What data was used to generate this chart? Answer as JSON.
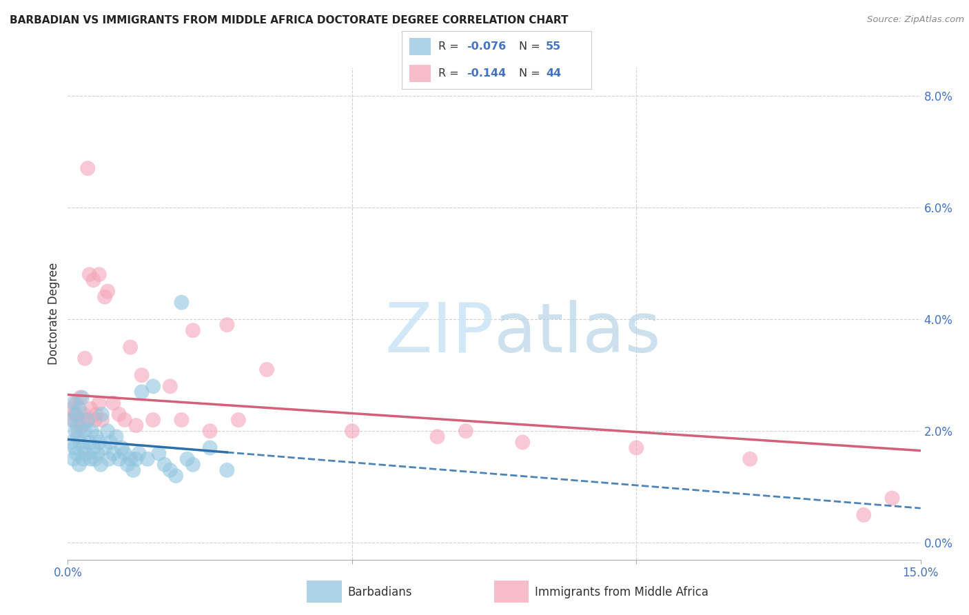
{
  "title": "BARBADIAN VS IMMIGRANTS FROM MIDDLE AFRICA DOCTORATE DEGREE CORRELATION CHART",
  "source": "Source: ZipAtlas.com",
  "ylabel": "Doctorate Degree",
  "ytick_vals": [
    0.0,
    2.0,
    4.0,
    6.0,
    8.0
  ],
  "xlim": [
    0.0,
    15.0
  ],
  "ylim": [
    -0.3,
    8.5
  ],
  "legend_blue_r": "-0.076",
  "legend_blue_n": "55",
  "legend_pink_r": "-0.144",
  "legend_pink_n": "44",
  "blue_color": "#92c5de",
  "pink_color": "#f4a6b8",
  "blue_line_color": "#2c6fad",
  "pink_line_color": "#d4607a",
  "blue_scatter": {
    "x": [
      0.05,
      0.07,
      0.1,
      0.1,
      0.12,
      0.13,
      0.15,
      0.15,
      0.17,
      0.18,
      0.2,
      0.2,
      0.22,
      0.25,
      0.27,
      0.28,
      0.3,
      0.32,
      0.35,
      0.38,
      0.4,
      0.42,
      0.45,
      0.48,
      0.5,
      0.52,
      0.55,
      0.58,
      0.6,
      0.65,
      0.7,
      0.72,
      0.75,
      0.8,
      0.85,
      0.9,
      0.95,
      1.0,
      1.05,
      1.1,
      1.15,
      1.2,
      1.25,
      1.3,
      1.4,
      1.5,
      1.6,
      1.7,
      1.8,
      1.9,
      2.0,
      2.1,
      2.2,
      2.5,
      2.8
    ],
    "y": [
      2.2,
      1.8,
      2.5,
      1.5,
      1.7,
      2.0,
      2.3,
      1.6,
      2.1,
      1.9,
      2.4,
      1.4,
      1.8,
      2.6,
      1.5,
      1.7,
      2.0,
      1.6,
      2.2,
      1.8,
      1.5,
      2.0,
      1.7,
      1.5,
      1.9,
      1.6,
      1.8,
      1.4,
      2.3,
      1.7,
      2.0,
      1.5,
      1.8,
      1.6,
      1.9,
      1.5,
      1.7,
      1.6,
      1.4,
      1.5,
      1.3,
      1.5,
      1.6,
      2.7,
      1.5,
      2.8,
      1.6,
      1.4,
      1.3,
      1.2,
      4.3,
      1.5,
      1.4,
      1.7,
      1.3
    ]
  },
  "pink_scatter": {
    "x": [
      0.08,
      0.1,
      0.12,
      0.15,
      0.18,
      0.2,
      0.22,
      0.25,
      0.28,
      0.3,
      0.35,
      0.38,
      0.4,
      0.45,
      0.48,
      0.5,
      0.55,
      0.6,
      0.65,
      0.7,
      0.8,
      0.9,
      1.0,
      1.1,
      1.2,
      1.3,
      1.5,
      1.8,
      2.0,
      2.5,
      3.0,
      3.5,
      5.0,
      6.5,
      7.0,
      8.0,
      10.0,
      12.0,
      14.0,
      14.5,
      0.35,
      0.55,
      2.2,
      2.8
    ],
    "y": [
      2.4,
      2.2,
      2.3,
      2.5,
      2.0,
      2.2,
      2.6,
      2.1,
      2.3,
      3.3,
      2.2,
      4.8,
      2.4,
      4.7,
      2.2,
      2.3,
      2.5,
      2.2,
      4.4,
      4.5,
      2.5,
      2.3,
      2.2,
      3.5,
      2.1,
      3.0,
      2.2,
      2.8,
      2.2,
      2.0,
      2.2,
      3.1,
      2.0,
      1.9,
      2.0,
      1.8,
      1.7,
      1.5,
      0.5,
      0.8,
      6.7,
      4.8,
      3.8,
      3.9
    ]
  },
  "background_color": "#ffffff",
  "grid_color": "#d0d0d0",
  "title_fontsize": 11,
  "tick_label_color": "#4472c4",
  "blue_line_start": 0.0,
  "blue_line_solid_end": 2.8,
  "blue_line_dashed_end": 15.0,
  "pink_line_start": 0.0,
  "pink_line_end": 15.0,
  "blue_line_y0": 1.85,
  "blue_line_y_solid_end": 1.62,
  "blue_line_y_dashed_end": 0.62,
  "pink_line_y0": 2.65,
  "pink_line_y_end": 1.65
}
